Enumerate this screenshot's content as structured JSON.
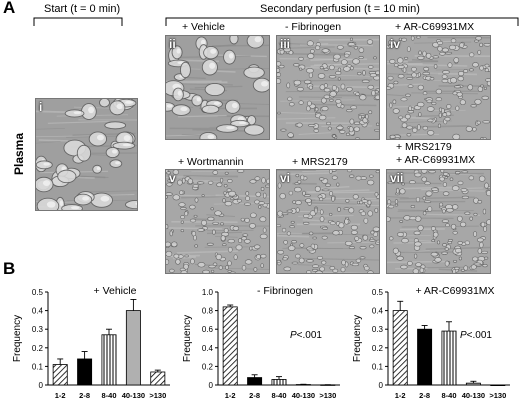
{
  "figure": {
    "panel_a_letter": "A",
    "panel_b_letter": "B",
    "start_label": "Start (t = 0 min)",
    "secondary_label": "Secondary perfusion (t = 10 min)",
    "row_label": "Plasma"
  },
  "micrographs": [
    {
      "id": "i",
      "numeral": "i",
      "condition": "",
      "style": "large-cells"
    },
    {
      "id": "ii",
      "numeral": "ii",
      "condition": "+ Vehicle",
      "style": "large-cells"
    },
    {
      "id": "iii",
      "numeral": "iii",
      "condition": "- Fibrinogen",
      "style": "small-cells"
    },
    {
      "id": "iv",
      "numeral": "iv",
      "condition": "+ AR-C69931MX",
      "style": "small-cells"
    },
    {
      "id": "v",
      "numeral": "v",
      "condition": "+ Wortmannin",
      "style": "small-cells"
    },
    {
      "id": "vi",
      "numeral": "vi",
      "condition": "+ MRS2179",
      "style": "small-cells"
    },
    {
      "id": "vii",
      "numeral": "vii",
      "condition_line1": "+ MRS2179",
      "condition_line2": "+ AR-C69931MX",
      "style": "small-cells"
    }
  ],
  "chart_data": [
    {
      "type": "bar",
      "title": "+ Vehicle",
      "ylabel": "Frequency",
      "categories": [
        "1-2",
        "2-8",
        "8-40",
        "40-130",
        ">130"
      ],
      "values": [
        0.11,
        0.14,
        0.27,
        0.4,
        0.07
      ],
      "errors": [
        0.03,
        0.04,
        0.03,
        0.06,
        0.01
      ],
      "ylim": [
        0,
        0.5
      ],
      "yticks": [
        "0",
        "0.1",
        "0.2",
        "0.3",
        "0.4",
        "0.5"
      ],
      "annotation": ""
    },
    {
      "type": "bar",
      "title": "- Fibrinogen",
      "ylabel": "Frequency",
      "categories": [
        "1-2",
        "2-8",
        "8-40",
        "40-130",
        ">130"
      ],
      "values": [
        0.84,
        0.08,
        0.06,
        0.005,
        0.002
      ],
      "errors": [
        0.02,
        0.03,
        0.03,
        0.003,
        0.001
      ],
      "ylim": [
        0,
        1.0
      ],
      "yticks": [
        "0",
        "0.2",
        "0.4",
        "0.6",
        "0.8",
        "1.0"
      ],
      "annotation": "P<.001"
    },
    {
      "type": "bar",
      "title": "+ AR-C69931MX",
      "ylabel": "Frequency",
      "categories": [
        "1-2",
        "2-8",
        "8-40",
        "40-130",
        ">130"
      ],
      "values": [
        0.4,
        0.3,
        0.29,
        0.01,
        0.0
      ],
      "errors": [
        0.05,
        0.02,
        0.05,
        0.01,
        0.0
      ],
      "ylim": [
        0,
        0.5
      ],
      "yticks": [
        "0",
        "0.1",
        "0.2",
        "0.3",
        "0.4",
        "0.5"
      ],
      "annotation": "P<.001"
    }
  ]
}
